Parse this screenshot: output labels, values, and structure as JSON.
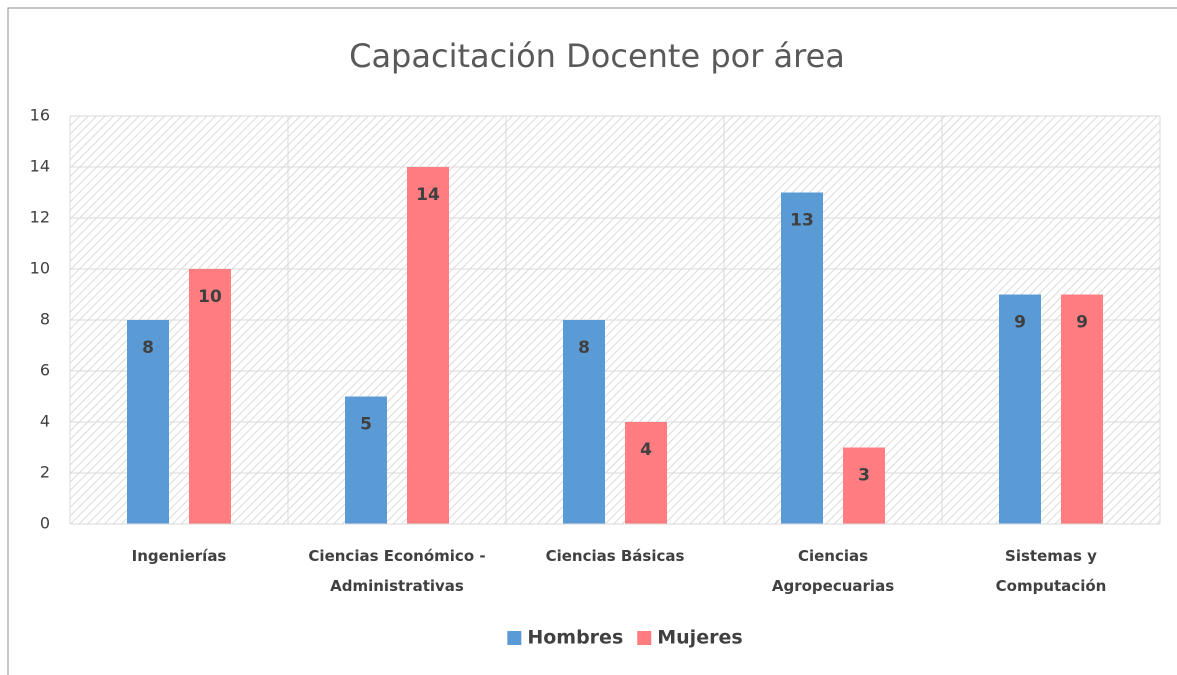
{
  "chart_data": {
    "type": "bar",
    "title": "Capacitación Docente por área",
    "categories": [
      "Ingenierías",
      "Ciencias Económico -\nAdministrativas",
      "Ciencias Básicas",
      "Ciencias\nAgropecuarias",
      "Sistemas y\nComputación"
    ],
    "series": [
      {
        "name": "Hombres",
        "color": "#5b9bd5",
        "values": [
          8,
          5,
          8,
          13,
          9
        ]
      },
      {
        "name": "Mujeres",
        "color": "#ff7c80",
        "values": [
          10,
          14,
          4,
          3,
          9
        ]
      }
    ],
    "ylim": [
      0,
      16
    ],
    "yticks": [
      0,
      2,
      4,
      6,
      8,
      10,
      12,
      14,
      16
    ],
    "grid": true,
    "legend": "bottom"
  }
}
